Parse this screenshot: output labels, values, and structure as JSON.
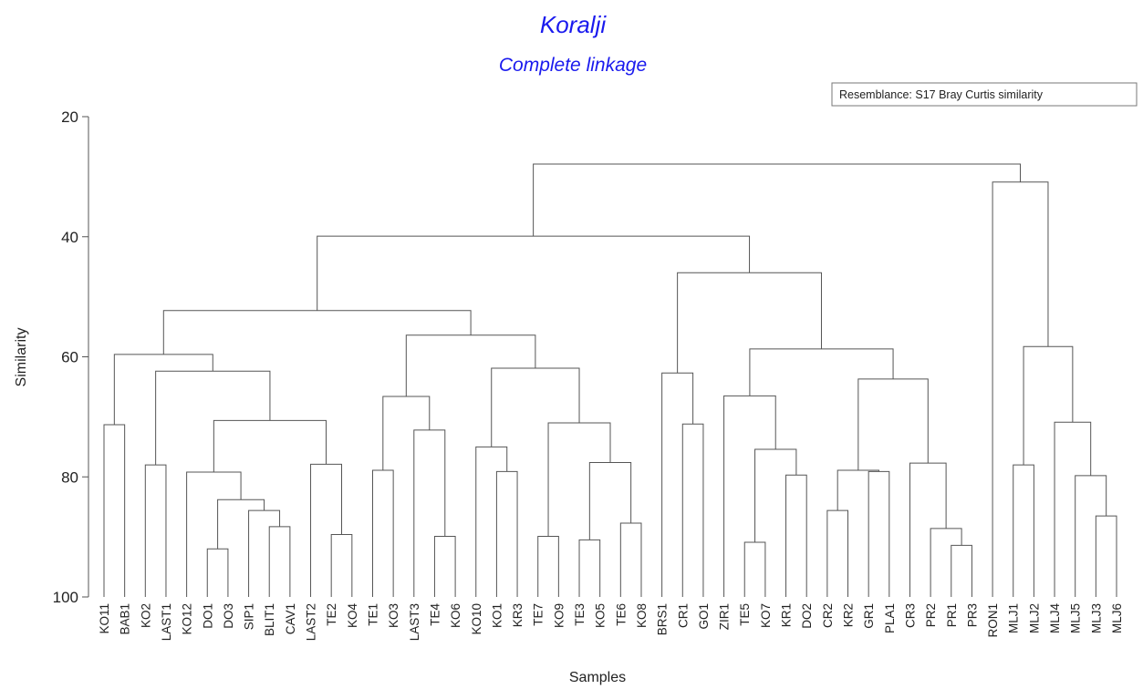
{
  "chart_data": {
    "type": "dendrogram",
    "title": "Koralji",
    "subtitle": "Complete linkage",
    "annotation": "Resemblance: S17 Bray Curtis similarity",
    "ylabel": "Similarity",
    "xlabel": "Samples",
    "color": "#555555",
    "title_color": "#1a1aee",
    "ylim": [
      20,
      100
    ],
    "yticks": [
      20,
      40,
      60,
      80,
      100
    ],
    "leaves": [
      "KO11",
      "BAB1",
      "KO2",
      "LAST1",
      "KO12",
      "DO1",
      "DO3",
      "SIP1",
      "BLIT1",
      "CAV1",
      "LAST2",
      "TE2",
      "KO4",
      "TE1",
      "KO3",
      "LAST3",
      "TE4",
      "KO6",
      "KO10",
      "KO1",
      "KR3",
      "TE7",
      "KO9",
      "TE3",
      "KO5",
      "TE6",
      "KO8",
      "BRS1",
      "CR1",
      "GO1",
      "ZIR1",
      "TE5",
      "KO7",
      "KR1",
      "DO2",
      "CR2",
      "KR2",
      "GR1",
      "PLA1",
      "CR3",
      "PR2",
      "PR1",
      "PR3",
      "RON1",
      "MLJ1",
      "MLJ2",
      "MLJ4",
      "MLJ5",
      "MLJ3",
      "MLJ6"
    ],
    "merges": [
      {
        "nodes": [
          0,
          1
        ],
        "height": 71.3
      },
      {
        "nodes": [
          2,
          3
        ],
        "height": 78
      },
      {
        "nodes": [
          5,
          6
        ],
        "height": 92
      },
      {
        "nodes": [
          8,
          9
        ],
        "height": 88.3
      },
      {
        "nodes": [
          7,
          53
        ],
        "height": 85.6
      },
      {
        "nodes": [
          52,
          54
        ],
        "height": 83.8
      },
      {
        "nodes": [
          4,
          55
        ],
        "height": 79.2
      },
      {
        "nodes": [
          11,
          12
        ],
        "height": 89.6
      },
      {
        "nodes": [
          10,
          57
        ],
        "height": 77.9
      },
      {
        "nodes": [
          56,
          58
        ],
        "height": 70.6
      },
      {
        "nodes": [
          51,
          59
        ],
        "height": 62.4
      },
      {
        "nodes": [
          50,
          60
        ],
        "height": 59.6
      },
      {
        "nodes": [
          13,
          14
        ],
        "height": 78.9
      },
      {
        "nodes": [
          16,
          17
        ],
        "height": 89.9
      },
      {
        "nodes": [
          15,
          63
        ],
        "height": 72.2
      },
      {
        "nodes": [
          62,
          64
        ],
        "height": 66.6
      },
      {
        "nodes": [
          19,
          20
        ],
        "height": 79.1
      },
      {
        "nodes": [
          18,
          66
        ],
        "height": 75
      },
      {
        "nodes": [
          21,
          22
        ],
        "height": 89.9
      },
      {
        "nodes": [
          23,
          24
        ],
        "height": 90.5
      },
      {
        "nodes": [
          25,
          26
        ],
        "height": 87.7
      },
      {
        "nodes": [
          69,
          70
        ],
        "height": 77.6
      },
      {
        "nodes": [
          68,
          71
        ],
        "height": 71
      },
      {
        "nodes": [
          67,
          72
        ],
        "height": 61.9
      },
      {
        "nodes": [
          65,
          73
        ],
        "height": 56.4
      },
      {
        "nodes": [
          61,
          74
        ],
        "height": 52.3
      },
      {
        "nodes": [
          28,
          29
        ],
        "height": 71.2
      },
      {
        "nodes": [
          27,
          76
        ],
        "height": 62.7
      },
      {
        "nodes": [
          31,
          32
        ],
        "height": 90.9
      },
      {
        "nodes": [
          33,
          34
        ],
        "height": 79.7
      },
      {
        "nodes": [
          78,
          79
        ],
        "height": 75.4
      },
      {
        "nodes": [
          30,
          80
        ],
        "height": 66.5
      },
      {
        "nodes": [
          35,
          36
        ],
        "height": 85.6
      },
      {
        "nodes": [
          37,
          38
        ],
        "height": 79.1
      },
      {
        "nodes": [
          82,
          83
        ],
        "height": 78.9
      },
      {
        "nodes": [
          41,
          42
        ],
        "height": 91.4
      },
      {
        "nodes": [
          40,
          85
        ],
        "height": 88.6
      },
      {
        "nodes": [
          39,
          86
        ],
        "height": 77.7
      },
      {
        "nodes": [
          84,
          87
        ],
        "height": 63.7
      },
      {
        "nodes": [
          81,
          88
        ],
        "height": 58.7
      },
      {
        "nodes": [
          77,
          89
        ],
        "height": 46
      },
      {
        "nodes": [
          75,
          90
        ],
        "height": 39.9
      },
      {
        "nodes": [
          48,
          49
        ],
        "height": 86.5
      },
      {
        "nodes": [
          47,
          92
        ],
        "height": 79.8
      },
      {
        "nodes": [
          46,
          93
        ],
        "height": 70.9
      },
      {
        "nodes": [
          44,
          45
        ],
        "height": 78
      },
      {
        "nodes": [
          95,
          94
        ],
        "height": 58.3
      },
      {
        "nodes": [
          43,
          96
        ],
        "height": 30.9
      },
      {
        "nodes": [
          91,
          97
        ],
        "height": 27.9
      }
    ]
  }
}
